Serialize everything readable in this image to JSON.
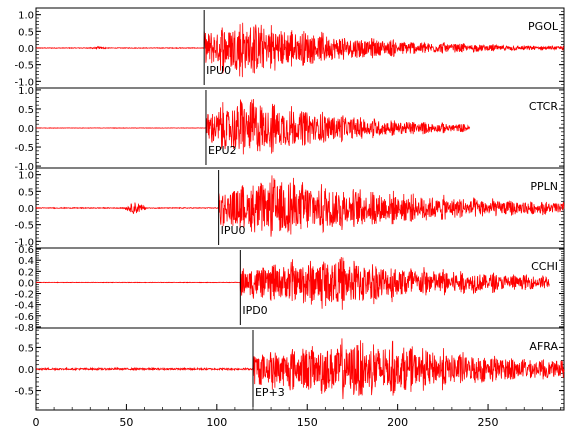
{
  "chart_data": {
    "type": "line",
    "title": "",
    "xlabel": "",
    "ylabel": "",
    "x_range": [
      0,
      292
    ],
    "x_ticks": [
      0,
      50,
      100,
      150,
      200,
      250
    ],
    "grid": false,
    "trace_color": "#ff0000",
    "panels": [
      {
        "station": "PGOL",
        "pick_label": "IPU0",
        "pick_time": 93,
        "ylim": [
          -1.2,
          1.2
        ],
        "y_ticks": [
          1.0,
          0.5,
          0.0,
          -0.5,
          -1.0
        ],
        "y_tick_labels": [
          "1.0",
          "0.5",
          "0.0",
          "-0.5",
          "-1.0"
        ],
        "noise_amplitude": 0.01,
        "precursor": {
          "start": 28,
          "end": 40,
          "amplitude": 0.04
        },
        "signal": {
          "start": 93,
          "end": 292,
          "peak_time": 115,
          "peak_amplitude": 1.05,
          "decay": 0.016,
          "end_taper": false
        }
      },
      {
        "station": "CTCR",
        "pick_label": "EPU2",
        "pick_time": 94,
        "ylim": [
          -1.05,
          1.05
        ],
        "y_ticks": [
          1.0,
          0.5,
          0.0,
          -0.5,
          -1.0
        ],
        "y_tick_labels": [
          "1.0",
          "0.5",
          "0.0",
          "-0.5",
          "-1.0"
        ],
        "noise_amplitude": 0.005,
        "precursor": null,
        "signal": {
          "start": 94,
          "end": 240,
          "peak_time": 117,
          "peak_amplitude": 0.95,
          "decay": 0.017,
          "end_taper": false
        }
      },
      {
        "station": "PPLN",
        "pick_label": "IPU0",
        "pick_time": 101,
        "ylim": [
          -1.2,
          1.2
        ],
        "y_ticks": [
          1.0,
          0.5,
          0.0,
          -0.5,
          -1.0
        ],
        "y_tick_labels": [
          "1.0",
          "0.5",
          "0.0",
          "-0.5",
          "-1.0"
        ],
        "noise_amplitude": 0.012,
        "precursor": {
          "start": 48,
          "end": 62,
          "amplitude": 0.2
        },
        "signal": {
          "start": 101,
          "end": 292,
          "peak_time": 135,
          "peak_amplitude": 1.1,
          "decay": 0.011,
          "end_taper": false
        }
      },
      {
        "station": "CCHI",
        "pick_label": "IPD0",
        "pick_time": 113,
        "ylim": [
          -0.82,
          0.62
        ],
        "y_ticks": [
          0.6,
          0.4,
          0.2,
          0.0,
          -0.2,
          -0.4,
          -0.6,
          -0.8
        ],
        "y_tick_labels": [
          "0.6",
          "0.4",
          "0.2",
          "0.0",
          "-0.2",
          "-0.4",
          "-0.6",
          "-0.8"
        ],
        "noise_amplitude": 0.004,
        "precursor": null,
        "signal": {
          "start": 113,
          "end": 284,
          "peak_time": 165,
          "peak_amplitude": 0.55,
          "decay": 0.012,
          "end_taper": false
        }
      },
      {
        "station": "AFRA",
        "pick_label": "EP+3",
        "pick_time": 120,
        "ylim": [
          -0.95,
          0.95
        ],
        "y_ticks": [
          0.5,
          0.0,
          -0.5
        ],
        "y_tick_labels": [
          "0.5",
          "0.0",
          "-0.5"
        ],
        "noise_amplitude": 0.02,
        "precursor": null,
        "signal": {
          "start": 120,
          "end": 292,
          "peak_time": 180,
          "peak_amplitude": 0.8,
          "decay": 0.011,
          "end_taper": false
        }
      }
    ]
  }
}
